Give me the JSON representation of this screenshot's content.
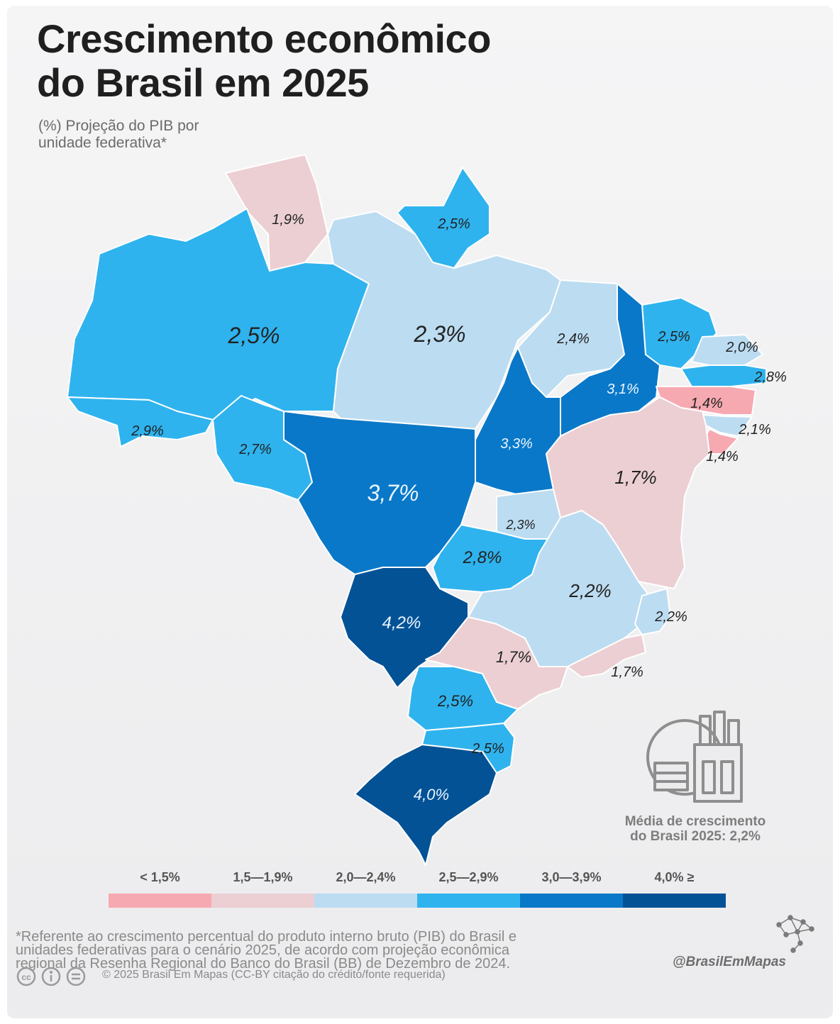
{
  "title_line1": "Crescimento econômico",
  "title_line2": "do Brasil em 2025",
  "subtitle_line1": "(%) Projeção do PIB por",
  "subtitle_line2": "unidade federativa*",
  "map_labels": {
    "rr": "1,9%",
    "ap": "2,5%",
    "am": "2,5%",
    "pa": "2,3%",
    "ma": "2,4%",
    "ce": "2,5%",
    "rn": "2,0%",
    "pb": "2,8%",
    "pi": "3,1%",
    "pe": "1,4%",
    "al": "2,1%",
    "se": "1,4%",
    "ac": "2,9%",
    "ro": "2,7%",
    "to": "3,3%",
    "ba": "1,7%",
    "mt": "3,7%",
    "df": "2,3%",
    "go": "2,8%",
    "mg": "2,2%",
    "es": "2,2%",
    "ms": "4,2%",
    "sp": "1,7%",
    "rj": "1,7%",
    "pr": "2,5%",
    "sc": "2,5%",
    "rs": "4,0%"
  },
  "state_values": {
    "rr": 1.9,
    "ap": 2.5,
    "am": 2.5,
    "pa": 2.3,
    "ma": 2.4,
    "ce": 2.5,
    "rn": 2.0,
    "pb": 2.8,
    "pi": 3.1,
    "pe": 1.4,
    "al": 2.1,
    "se": 1.4,
    "ac": 2.9,
    "ro": 2.7,
    "to": 3.3,
    "ba": 1.7,
    "mt": 3.7,
    "df": 2.3,
    "go": 2.8,
    "mg": 2.2,
    "es": 2.2,
    "ms": 4.2,
    "sp": 1.7,
    "rj": 1.7,
    "pr": 2.5,
    "sc": 2.5,
    "rs": 4.0
  },
  "average_line1": "Média de crescimento",
  "average_line2": "do Brasil 2025: 2,2%",
  "legend": [
    {
      "label": "< 1,5%",
      "color": "#f7a9b1"
    },
    {
      "label": "1,5—1,9%",
      "color": "#eccfd3"
    },
    {
      "label": "2,0—2,4%",
      "color": "#bcdcf1"
    },
    {
      "label": "2,5—2,9%",
      "color": "#2fb3ee"
    },
    {
      "label": "3,0—3,9%",
      "color": "#0a78c8"
    },
    {
      "label": "4,0% ≥",
      "color": "#045296"
    }
  ],
  "footnote_line1": "*Referente ao crescimento percentual do produto interno bruto (PIB) do Brasil e",
  "footnote_line2": "unidades federativas para o cenário 2025, de acordo com projeção econômica",
  "footnote_line3": "regional da Resenha Regional do Banco do Brasil (BB) de Dezembro de 2024.",
  "copyright": "© 2025 Brasil Em Mapas (CC-BY citação do crédito/fonte requerida)",
  "brand": "@BrasilEmMapas",
  "icons": [
    "industry-globe-icon",
    "creative-commons-icon",
    "attribution-icon",
    "no-derivatives-icon",
    "brazil-network-icon"
  ]
}
